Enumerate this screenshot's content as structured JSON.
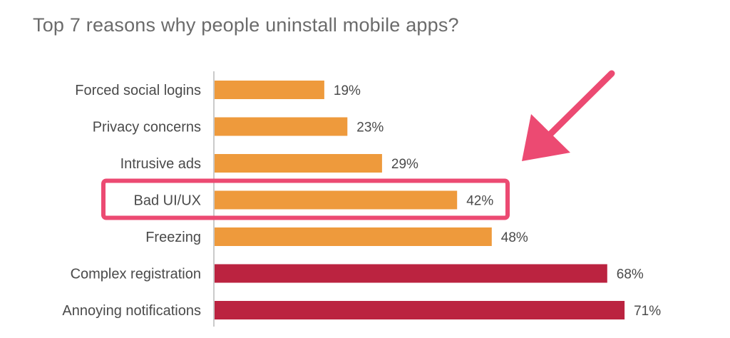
{
  "chart_data": {
    "type": "bar",
    "orientation": "horizontal",
    "title": "Top 7 reasons why people uninstall mobile apps?",
    "categories": [
      "Forced social logins",
      "Privacy concerns",
      "Intrusive ads",
      "Bad UI/UX",
      "Freezing",
      "Complex registration",
      "Annoying notifications"
    ],
    "values": [
      19,
      23,
      29,
      42,
      48,
      68,
      71
    ],
    "value_labels": [
      "19%",
      "23%",
      "29%",
      "42%",
      "48%",
      "68%",
      "71%"
    ],
    "bar_colors": [
      "#ee9a3c",
      "#ee9a3c",
      "#ee9a3c",
      "#ee9a3c",
      "#ee9a3c",
      "#bb2340",
      "#bb2340"
    ],
    "xlim": [
      0,
      100
    ],
    "grid": false,
    "highlighted_category": "Bad UI/UX",
    "highlight_color": "#ec4a72"
  }
}
